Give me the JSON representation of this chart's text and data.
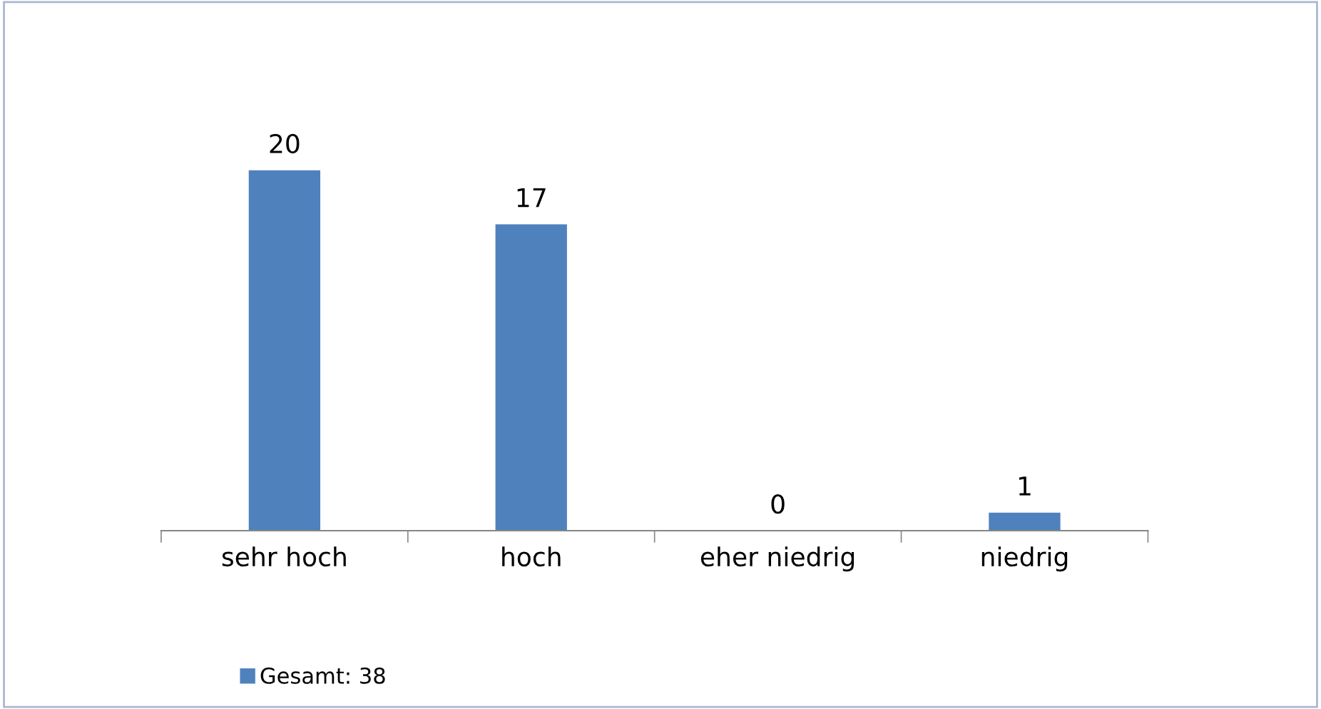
{
  "chart_data": {
    "type": "bar",
    "categories": [
      "sehr hoch",
      "hoch",
      "eher niedrig",
      "niedrig"
    ],
    "series": [
      {
        "name": "Gesamt: 38",
        "color": "#4f81bd",
        "values": [
          20,
          17,
          0,
          1
        ]
      }
    ],
    "data_labels": true,
    "legend": "bottom",
    "grid": false
  }
}
